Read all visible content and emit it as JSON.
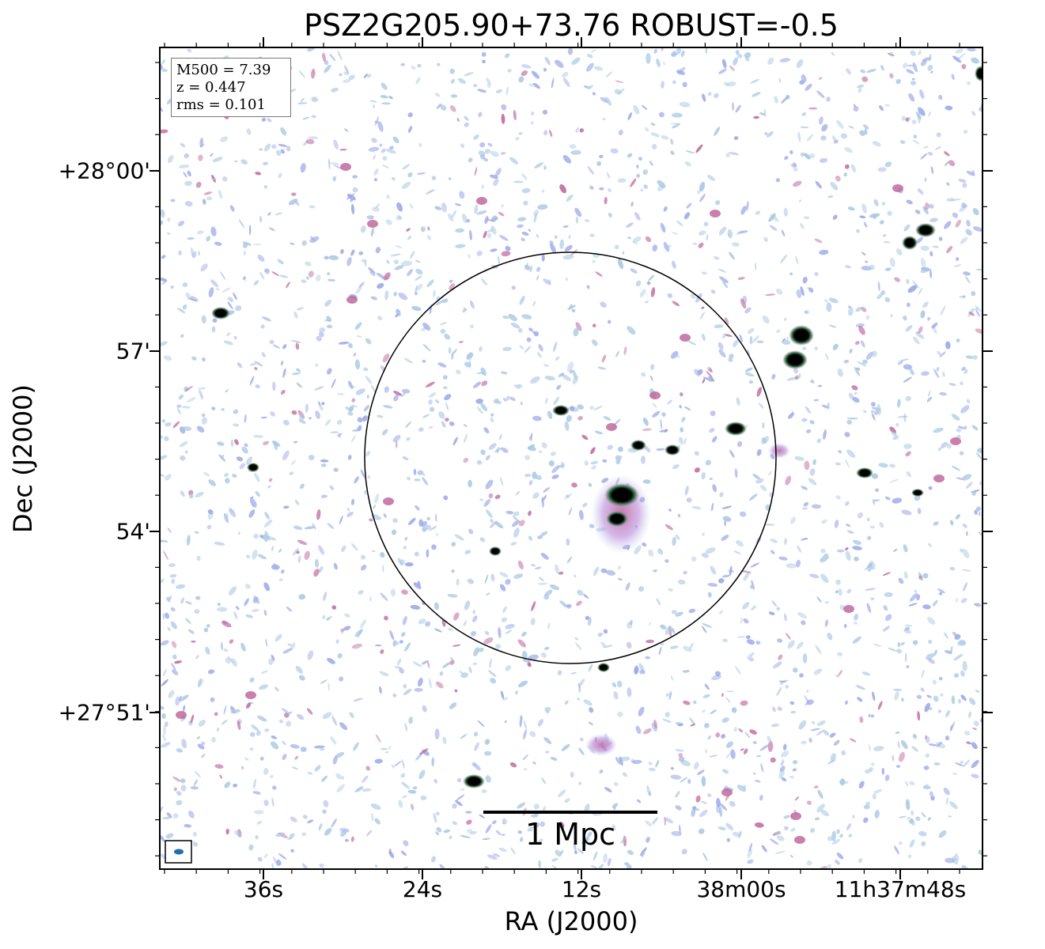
{
  "title": "PSZ2G205.90+73.76 ROBUST=-0.5",
  "axes": {
    "xlabel": "RA (J2000)",
    "ylabel": "Dec (J2000)",
    "xticks": [
      "36s",
      "24s",
      "12s",
      "38m00s",
      "11h37m48s"
    ],
    "yticks": [
      "+28°00'",
      "57'",
      "54'",
      "+27°51'"
    ]
  },
  "info_box": {
    "mass": "M500 = 7.39",
    "redshift": "z = 0.447",
    "rms": "rms = 0.101"
  },
  "scale_bar": {
    "label": "1 Mpc"
  },
  "colors": {
    "noise_light": "#a9c9e3",
    "noise_blue": "#9aa8e8",
    "emission_pink": "#c06a9e",
    "emission_green": "#2f7a4a",
    "source_core": "#000000",
    "beam": "#1f6fb0",
    "circle": "#000000"
  },
  "icons": {
    "beam": "beam-ellipse-icon"
  }
}
